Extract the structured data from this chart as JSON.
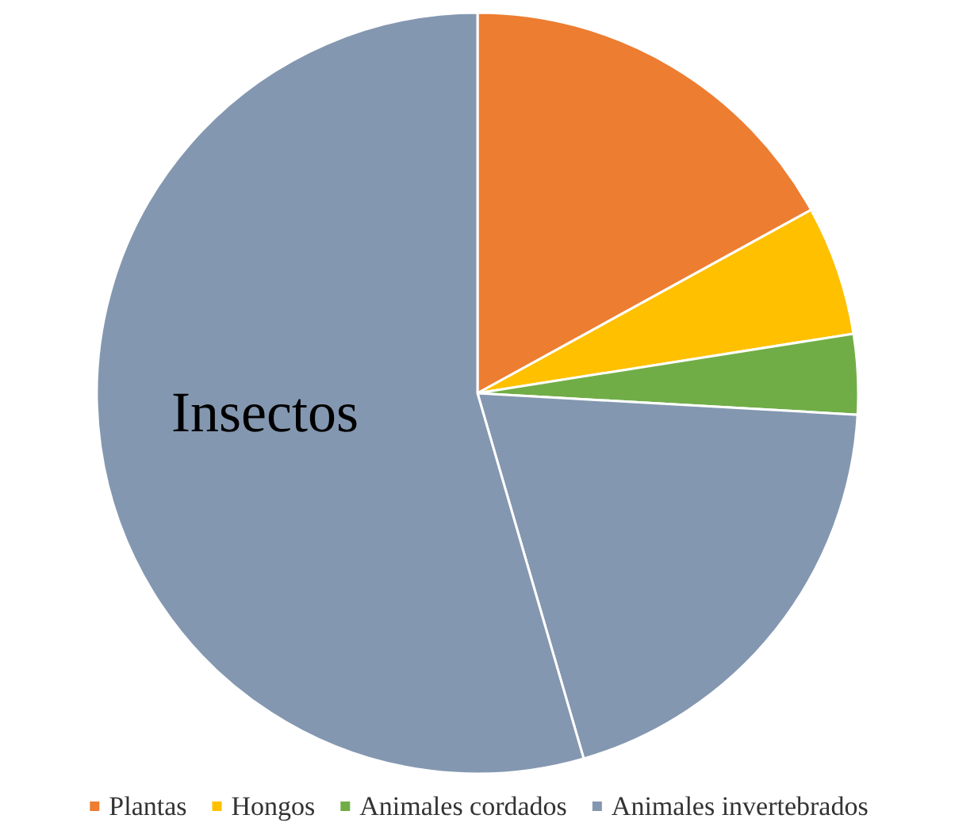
{
  "chart_data": {
    "type": "pie",
    "categories": [
      "Plantas",
      "Hongos",
      "Animales cordados",
      "Animales invertebrados",
      null
    ],
    "values": [
      17,
      5.5,
      3.4,
      19.6,
      54.5
    ],
    "colors": [
      "#ed7d31",
      "#ffc000",
      "#70ad47",
      "#8497b0",
      "#8497b0"
    ],
    "annotations": [
      "Insectos"
    ],
    "legend": "bottom"
  }
}
